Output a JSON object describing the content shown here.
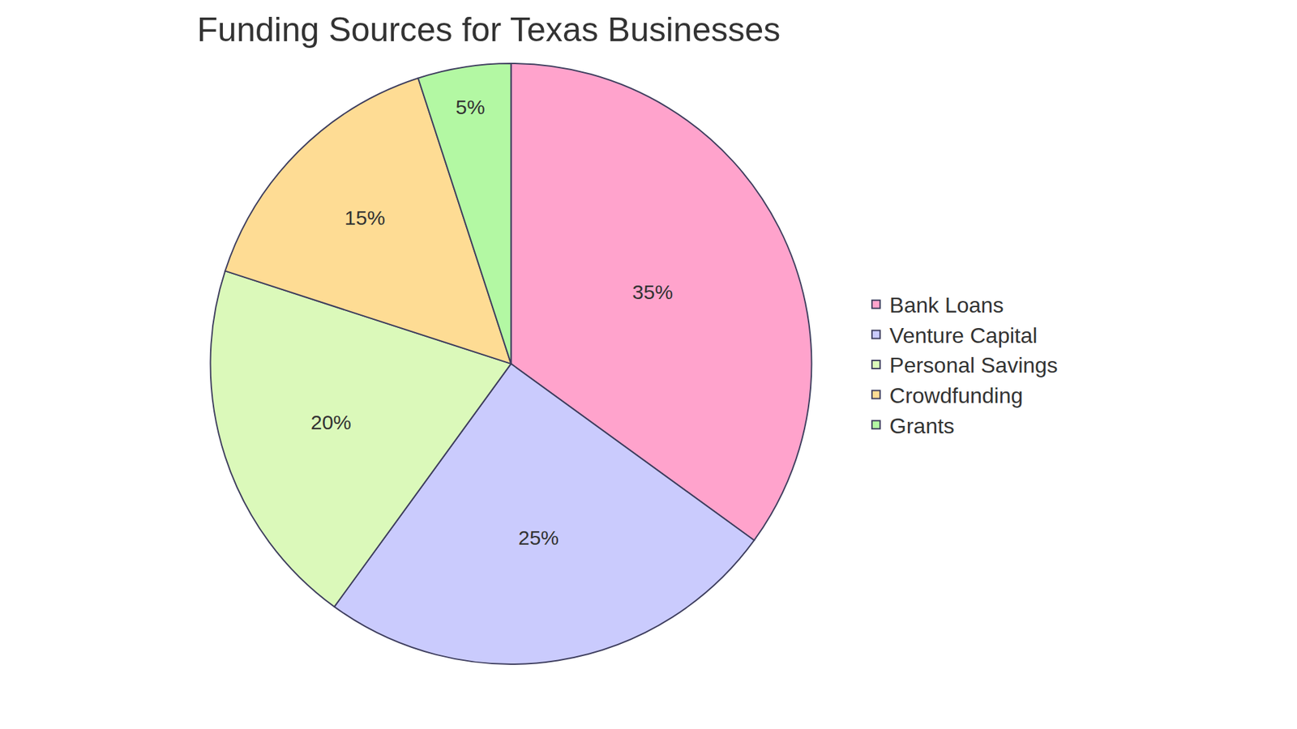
{
  "chart_data": {
    "type": "pie",
    "title": "Funding Sources for Texas Businesses",
    "categories": [
      "Bank Loans",
      "Venture Capital",
      "Personal Savings",
      "Crowdfunding",
      "Grants"
    ],
    "values": [
      35,
      25,
      20,
      15,
      5
    ],
    "value_labels": [
      "35%",
      "25%",
      "20%",
      "15%",
      "5%"
    ],
    "colors": [
      "#ffa3cc",
      "#cacbfd",
      "#dbf9ba",
      "#fedc94",
      "#b3f8a3"
    ],
    "data_labels": true,
    "legend": "right"
  }
}
